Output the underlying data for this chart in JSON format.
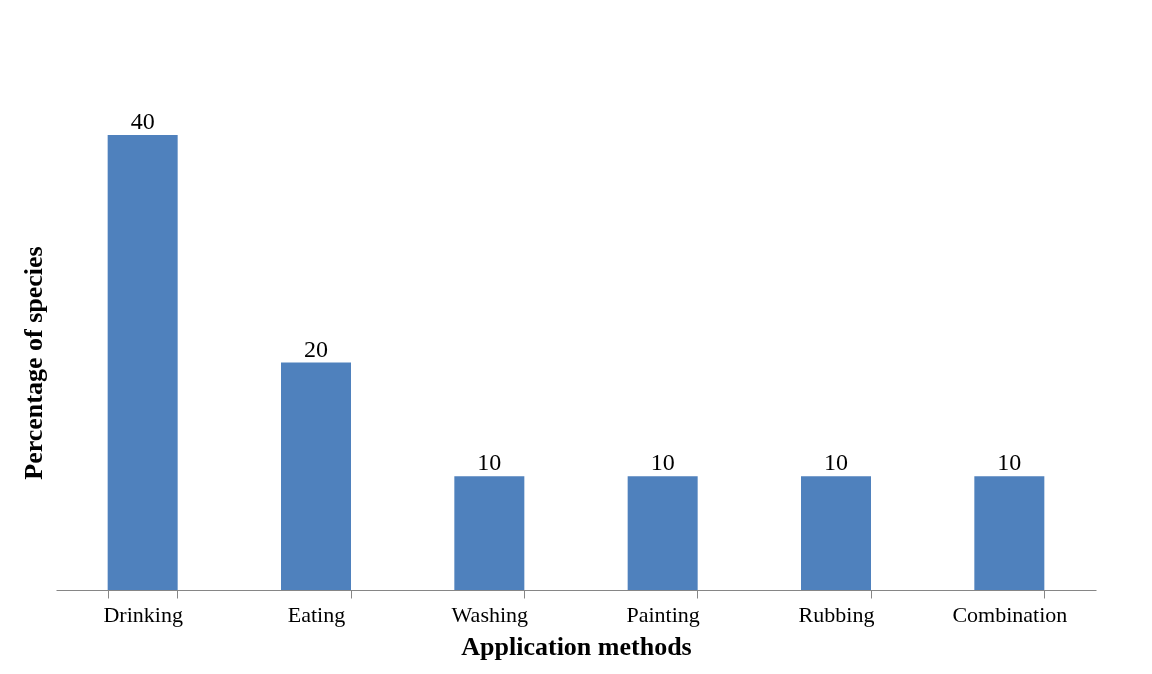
{
  "chart_data": {
    "type": "bar",
    "xlabel": "Application methods",
    "ylabel": "Percentage of species",
    "categories": [
      "Drinking",
      "Eating",
      "Washing",
      "Painting",
      "Rubbing",
      "Combination"
    ],
    "values": [
      40,
      20,
      10,
      10,
      10,
      10
    ],
    "color": "#4f81bd",
    "data_labels": true
  }
}
